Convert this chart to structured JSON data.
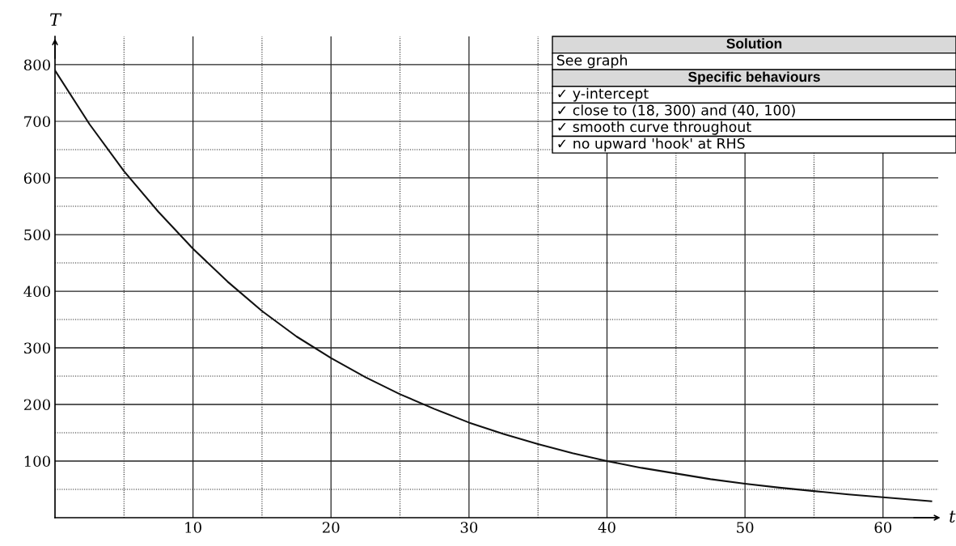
{
  "chart_data": {
    "type": "line",
    "xlabel": "t",
    "ylabel": "T",
    "x": [
      0,
      2.5,
      5,
      7.5,
      10,
      12.5,
      15,
      17.5,
      20,
      22.5,
      25,
      27.5,
      30,
      32.5,
      35,
      37.5,
      40,
      42.5,
      45,
      47.5,
      50,
      52.5,
      55,
      57.5,
      60,
      63.5
    ],
    "series": [
      {
        "color": "#111111",
        "values": [
          790,
          695,
          612,
          540,
          475,
          417,
          365,
          320,
          282,
          248,
          218,
          192,
          168,
          148,
          130,
          114,
          100,
          88,
          78,
          68,
          60,
          53,
          47,
          41,
          36,
          29
        ]
      }
    ],
    "xlim": [
      0,
      64
    ],
    "ylim": [
      0,
      850
    ],
    "xticks": [
      {
        "value": 5,
        "label": null
      },
      10,
      {
        "value": 15,
        "label": null
      },
      20,
      {
        "value": 25,
        "label": null
      },
      30,
      {
        "value": 35,
        "label": null
      },
      40,
      {
        "value": 45,
        "label": null
      },
      50,
      {
        "value": 55,
        "label": null
      },
      60
    ],
    "yticks": [
      {
        "value": 50,
        "label": null
      },
      100,
      {
        "value": 150,
        "label": null
      },
      200,
      {
        "value": 250,
        "label": null
      },
      300,
      {
        "value": 350,
        "label": null
      },
      400,
      {
        "value": 450,
        "label": null
      },
      500,
      {
        "value": 550,
        "label": null
      },
      600,
      {
        "value": 650,
        "label": null
      },
      700,
      {
        "value": 750,
        "label": null
      },
      800
    ],
    "grid": true,
    "marker": "none",
    "line_style": "solid",
    "annotations": [
      "Solution",
      "See graph",
      "Specific behaviours",
      "✓ y-intercept",
      "✓ close to (18, 300) and (40, 100)",
      "✓ smooth curve throughout",
      "✓ no upward 'hook' at RHS"
    ]
  }
}
